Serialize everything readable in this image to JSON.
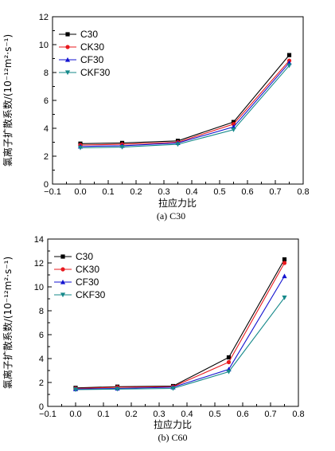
{
  "chart_data": [
    {
      "type": "line",
      "caption": "(a) C30",
      "xlabel": "拉应力比",
      "ylabel": "氯离子扩散系数/(10⁻¹²m²·s⁻¹)",
      "xlim": [
        -0.1,
        0.8
      ],
      "ylim": [
        0,
        12
      ],
      "xticks": [
        "−0.1",
        "0.0",
        "0.1",
        "0.2",
        "0.3",
        "0.4",
        "0.5",
        "0.6",
        "0.7",
        "0.8"
      ],
      "yticks": [
        "0",
        "2",
        "4",
        "6",
        "8",
        "10",
        "12"
      ],
      "x": [
        0.0,
        0.15,
        0.35,
        0.55,
        0.75
      ],
      "legend_position": "top-left",
      "grid": false,
      "series": [
        {
          "name": "C30",
          "color": "#000000",
          "marker": "square",
          "values": [
            2.9,
            2.95,
            3.1,
            4.45,
            9.25
          ]
        },
        {
          "name": "CK30",
          "color": "#e8191e",
          "marker": "circle",
          "values": [
            2.8,
            2.85,
            3.0,
            4.3,
            8.85
          ]
        },
        {
          "name": "CF30",
          "color": "#1313d0",
          "marker": "triangle-up",
          "values": [
            2.7,
            2.75,
            2.95,
            4.1,
            8.7
          ]
        },
        {
          "name": "CKF30",
          "color": "#15898a",
          "marker": "triangle-down",
          "values": [
            2.6,
            2.65,
            2.85,
            3.9,
            8.5
          ]
        }
      ]
    },
    {
      "type": "line",
      "caption": "(b) C60",
      "xlabel": "拉应力比",
      "ylabel": "氯离子扩散系数/(10⁻¹²m²·s⁻¹)",
      "xlim": [
        -0.1,
        0.8
      ],
      "ylim": [
        0,
        14
      ],
      "xticks": [
        "−0.1",
        "0.0",
        "0.1",
        "0.2",
        "0.3",
        "0.4",
        "0.5",
        "0.6",
        "0.7",
        "0.8"
      ],
      "yticks": [
        "0",
        "2",
        "4",
        "6",
        "8",
        "10",
        "12",
        "14"
      ],
      "x": [
        0.0,
        0.15,
        0.35,
        0.55,
        0.75
      ],
      "legend_position": "top-left",
      "grid": false,
      "series": [
        {
          "name": "C30",
          "color": "#000000",
          "marker": "square",
          "values": [
            1.55,
            1.65,
            1.7,
            4.1,
            12.3
          ]
        },
        {
          "name": "CK30",
          "color": "#e8191e",
          "marker": "circle",
          "values": [
            1.5,
            1.6,
            1.65,
            3.7,
            12.0
          ]
        },
        {
          "name": "CF30",
          "color": "#1313d0",
          "marker": "triangle-up",
          "values": [
            1.45,
            1.5,
            1.6,
            3.1,
            10.9
          ]
        },
        {
          "name": "CKF30",
          "color": "#15898a",
          "marker": "triangle-down",
          "values": [
            1.4,
            1.45,
            1.5,
            2.9,
            9.1
          ]
        }
      ]
    }
  ]
}
